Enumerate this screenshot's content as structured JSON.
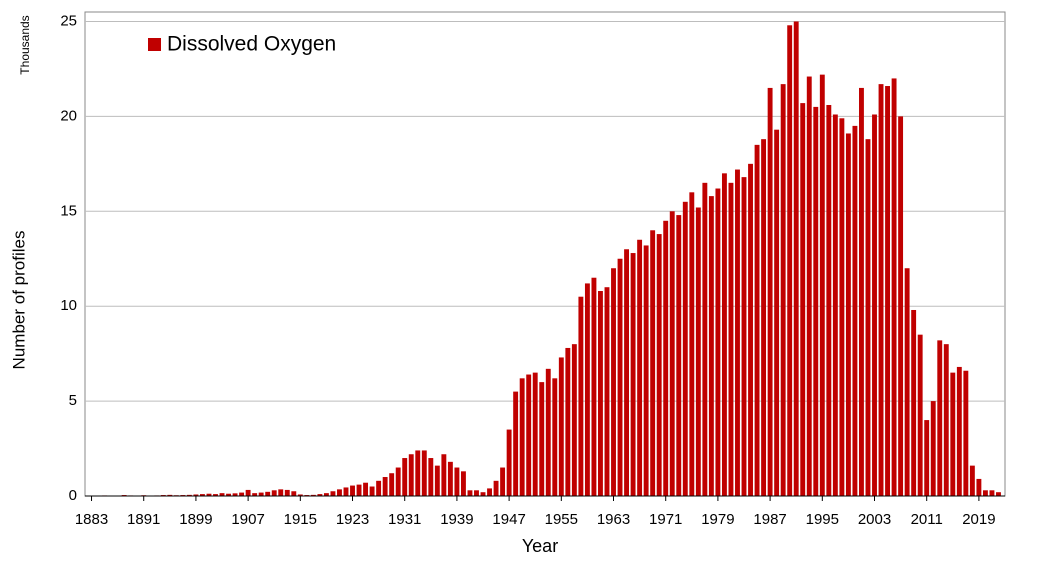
{
  "chart_data": {
    "type": "bar",
    "legend": "Dissolved Oxygen",
    "y_unit": "Thousands",
    "ylabel": "Number of profiles",
    "xlabel": "Year",
    "color": "#c00000",
    "x": [
      1883,
      1884,
      1885,
      1886,
      1887,
      1888,
      1889,
      1890,
      1891,
      1892,
      1893,
      1894,
      1895,
      1896,
      1897,
      1898,
      1899,
      1900,
      1901,
      1902,
      1903,
      1904,
      1905,
      1906,
      1907,
      1908,
      1909,
      1910,
      1911,
      1912,
      1913,
      1914,
      1915,
      1916,
      1917,
      1918,
      1919,
      1920,
      1921,
      1922,
      1923,
      1924,
      1925,
      1926,
      1927,
      1928,
      1929,
      1930,
      1931,
      1932,
      1933,
      1934,
      1935,
      1936,
      1937,
      1938,
      1939,
      1940,
      1941,
      1942,
      1943,
      1944,
      1945,
      1946,
      1947,
      1948,
      1949,
      1950,
      1951,
      1952,
      1953,
      1954,
      1955,
      1956,
      1957,
      1958,
      1959,
      1960,
      1961,
      1962,
      1963,
      1964,
      1965,
      1966,
      1967,
      1968,
      1969,
      1970,
      1971,
      1972,
      1973,
      1974,
      1975,
      1976,
      1977,
      1978,
      1979,
      1980,
      1981,
      1982,
      1983,
      1984,
      1985,
      1986,
      1987,
      1988,
      1989,
      1990,
      1991,
      1992,
      1993,
      1994,
      1995,
      1996,
      1997,
      1998,
      1999,
      2000,
      2001,
      2002,
      2003,
      2004,
      2005,
      2006,
      2007,
      2008,
      2009,
      2010,
      2011,
      2012,
      2013,
      2014,
      2015,
      2016,
      2017,
      2018,
      2019,
      2020,
      2021,
      2022
    ],
    "values": [
      0.02,
      0.01,
      0.03,
      0.02,
      0.01,
      0.05,
      0.03,
      0.02,
      0.04,
      0.02,
      0.03,
      0.05,
      0.06,
      0.04,
      0.05,
      0.06,
      0.08,
      0.1,
      0.12,
      0.1,
      0.15,
      0.12,
      0.14,
      0.18,
      0.32,
      0.15,
      0.18,
      0.22,
      0.3,
      0.35,
      0.32,
      0.25,
      0.08,
      0.05,
      0.06,
      0.1,
      0.15,
      0.25,
      0.35,
      0.45,
      0.55,
      0.6,
      0.7,
      0.5,
      0.8,
      1.0,
      1.2,
      1.5,
      2.0,
      2.2,
      2.4,
      2.4,
      2.0,
      1.6,
      2.2,
      1.8,
      1.5,
      1.3,
      0.3,
      0.3,
      0.2,
      0.4,
      0.8,
      1.5,
      3.5,
      5.5,
      6.2,
      6.4,
      6.5,
      6.0,
      6.7,
      6.2,
      7.3,
      7.8,
      8.0,
      10.5,
      11.2,
      11.5,
      10.8,
      11.0,
      12.0,
      12.5,
      13.0,
      12.8,
      13.5,
      13.2,
      14.0,
      13.8,
      14.5,
      15.0,
      14.8,
      15.5,
      16.0,
      15.2,
      16.5,
      15.8,
      16.2,
      17.0,
      16.5,
      17.2,
      16.8,
      17.5,
      18.5,
      18.8,
      21.5,
      19.3,
      21.7,
      24.8,
      25.0,
      20.7,
      22.1,
      20.5,
      22.2,
      20.6,
      20.1,
      19.9,
      19.1,
      19.5,
      21.5,
      18.8,
      20.1,
      21.7,
      21.6,
      22.0,
      20.0,
      12.0,
      9.8,
      8.5,
      4.0,
      5.0,
      8.2,
      8.0,
      6.5,
      6.8,
      6.6,
      1.6,
      0.9,
      0.3,
      0.3,
      0.2
    ],
    "xlim": [
      1882,
      2023
    ],
    "xticks": [
      1883,
      1891,
      1899,
      1907,
      1915,
      1923,
      1931,
      1939,
      1947,
      1955,
      1963,
      1971,
      1979,
      1987,
      1995,
      2003,
      2011,
      2019
    ],
    "ylim": [
      0,
      25.5
    ],
    "yticks": [
      0,
      5,
      10,
      15,
      20,
      25
    ],
    "grid": true
  }
}
